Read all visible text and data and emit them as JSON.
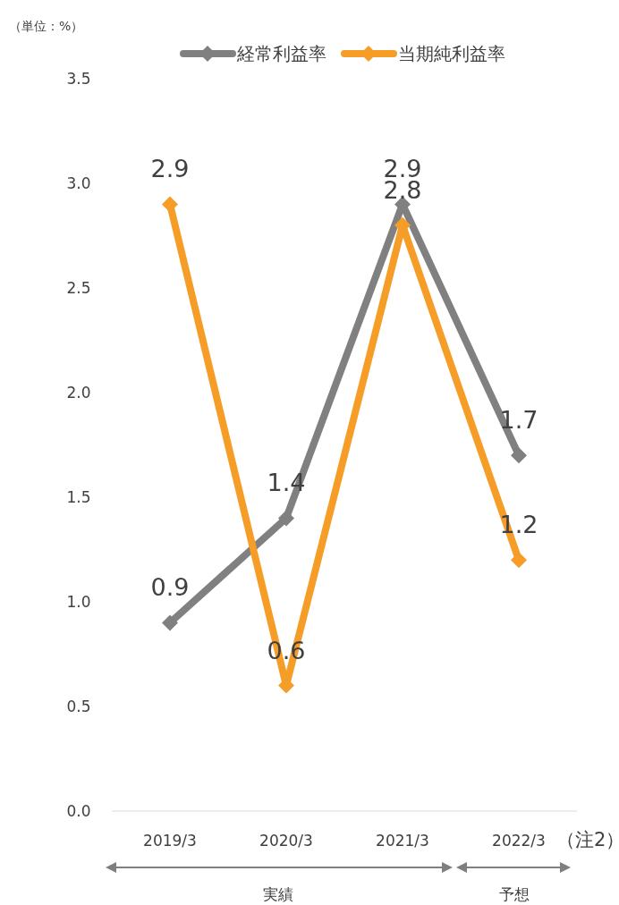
{
  "chart_data": {
    "type": "line",
    "categories": [
      "2019/3",
      "2020/3",
      "2021/3",
      "2022/3"
    ],
    "series": [
      {
        "name": "経常利益率",
        "color": "#808080",
        "values": [
          0.9,
          1.4,
          2.9,
          1.7
        ]
      },
      {
        "name": "当期純利益率",
        "color": "#f59d27",
        "values": [
          2.9,
          0.6,
          2.8,
          1.2
        ]
      }
    ],
    "ylim": [
      0,
      3.5
    ],
    "yticks": [
      {
        "value": 0,
        "label": "0.0"
      },
      0.5,
      {
        "value": 1,
        "label": "1.0"
      },
      1.5,
      {
        "value": 2,
        "label": "2.0"
      },
      2.5,
      {
        "value": 3,
        "label": "3.0"
      },
      3.5
    ],
    "data_labels": true,
    "legend": "top",
    "marker": "diamond",
    "line_style": "solid",
    "grid": false,
    "annotations": [
      "（単位：%）",
      "（注2）",
      "実績",
      "予想"
    ]
  }
}
